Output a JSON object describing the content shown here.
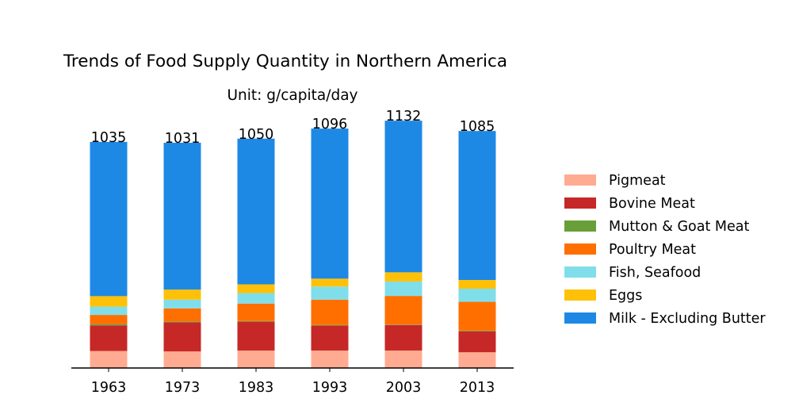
{
  "chart_data": {
    "type": "bar",
    "stacked": true,
    "title": "Trends of Food Supply Quantity in Northern America",
    "subtitle": "Unit: g/capita/day",
    "categories": [
      "1963",
      "1973",
      "1983",
      "1993",
      "2003",
      "2013"
    ],
    "totals": [
      1035,
      1031,
      1050,
      1096,
      1132,
      1085
    ],
    "series": [
      {
        "name": "Pigmeat",
        "color": "#FFAB91",
        "values": [
          78,
          76,
          80,
          80,
          80,
          72
        ]
      },
      {
        "name": "Bovine Meat",
        "color": "#C62828",
        "values": [
          117,
          133,
          132,
          114,
          117,
          96
        ]
      },
      {
        "name": "Mutton & Goat Meat",
        "color": "#689F38",
        "values": [
          6,
          4,
          3,
          3,
          2,
          3
        ]
      },
      {
        "name": "Poultry Meat",
        "color": "#FF6F00",
        "values": [
          42,
          60,
          80,
          116,
          131,
          132
        ]
      },
      {
        "name": "Fish, Seafood",
        "color": "#80DEEA",
        "values": [
          38,
          40,
          48,
          60,
          66,
          60
        ]
      },
      {
        "name": "Eggs",
        "color": "#FFC107",
        "values": [
          48,
          46,
          40,
          36,
          42,
          40
        ]
      },
      {
        "name": "Milk - Excluding Butter",
        "color": "#1E88E5",
        "values": [
          706,
          672,
          667,
          687,
          694,
          682
        ]
      }
    ],
    "ylim": [
      0,
      1140
    ],
    "legend_position": "right",
    "grid": false
  }
}
